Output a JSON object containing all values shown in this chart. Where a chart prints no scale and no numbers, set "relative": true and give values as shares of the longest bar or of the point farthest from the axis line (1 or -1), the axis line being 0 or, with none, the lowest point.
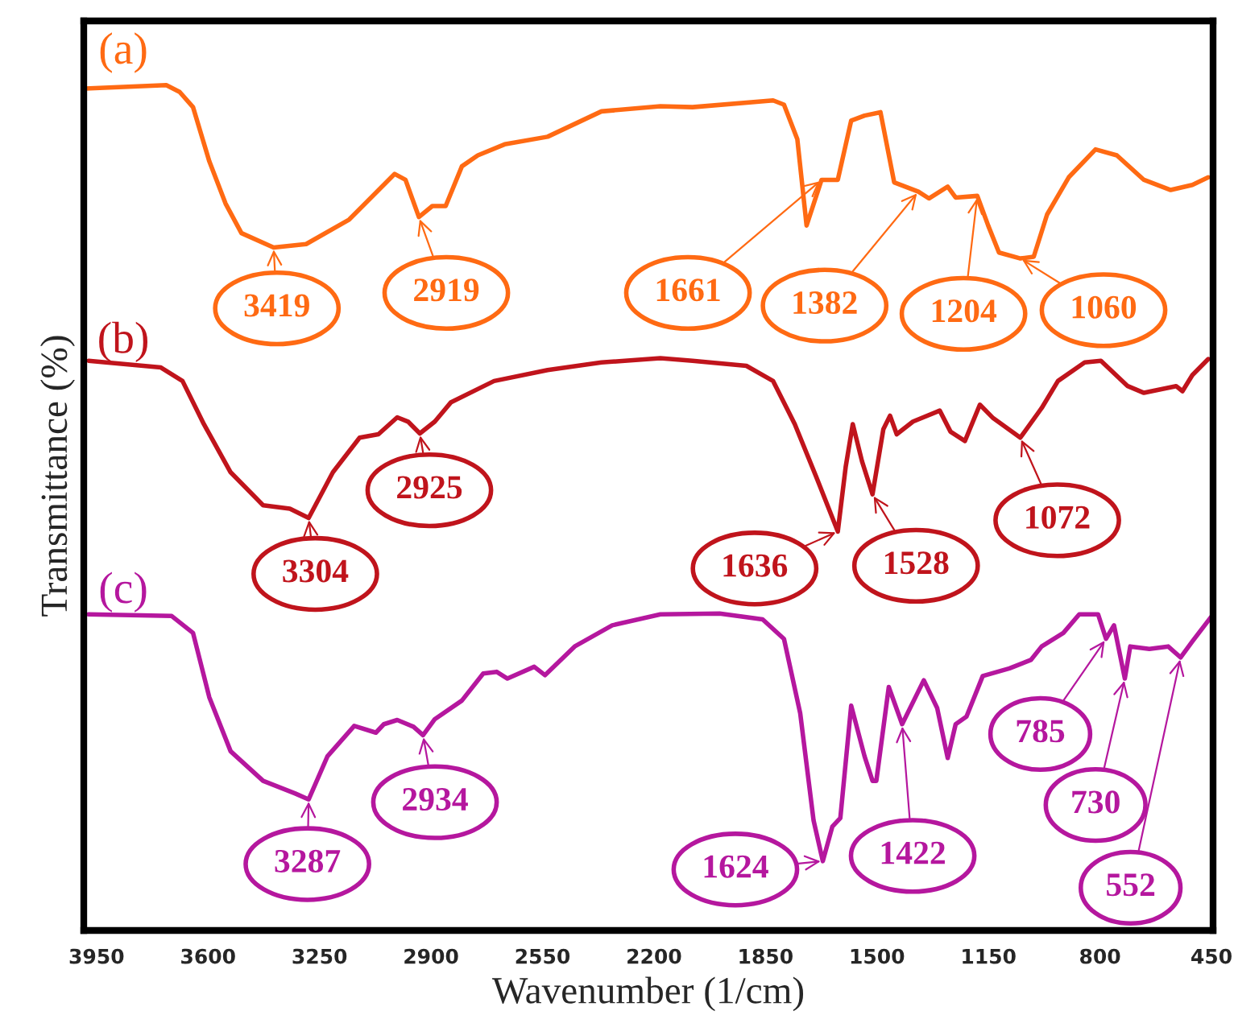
{
  "chart_data": {
    "type": "line",
    "xlabel": "Wavenumber (1/cm)",
    "ylabel": "Transmittance (%)",
    "relative": true,
    "xlim": [
      3990,
      445
    ],
    "xticks": [
      3950,
      3600,
      3250,
      2900,
      2550,
      2200,
      1850,
      1500,
      1150,
      800,
      450
    ],
    "grid": false,
    "legend": false,
    "marker": "none",
    "line_style": "solid",
    "series": [
      {
        "name": "(a)",
        "color": "#ff6a13",
        "x": [
          3985,
          3731,
          3689,
          3647,
          3596,
          3545,
          3495,
          3394,
          3292,
          3157,
          3014,
          2980,
          2938,
          2896,
          2854,
          2803,
          2753,
          2669,
          2534,
          2365,
          2180,
          2079,
          1826,
          1792,
          1750,
          1721,
          1674,
          1623,
          1581,
          1539,
          1489,
          1446,
          1370,
          1337,
          1278,
          1253,
          1185,
          1151,
          1117,
          1050,
          1008,
          966,
          898,
          814,
          747,
          662,
          578,
          510,
          460
        ],
        "values": [
          0.996,
          1.0,
          0.992,
          0.974,
          0.91,
          0.86,
          0.825,
          0.808,
          0.812,
          0.841,
          0.895,
          0.888,
          0.844,
          0.857,
          0.857,
          0.904,
          0.917,
          0.93,
          0.939,
          0.969,
          0.975,
          0.974,
          0.982,
          0.977,
          0.936,
          0.834,
          0.888,
          0.888,
          0.958,
          0.964,
          0.968,
          0.885,
          0.874,
          0.866,
          0.88,
          0.867,
          0.869,
          0.834,
          0.802,
          0.795,
          0.797,
          0.847,
          0.891,
          0.924,
          0.917,
          0.888,
          0.876,
          0.882,
          0.891
        ]
      },
      {
        "name": "(b)",
        "color": "#c0141c",
        "x": [
          3975,
          3748,
          3680,
          3613,
          3529,
          3427,
          3343,
          3284,
          3208,
          3124,
          3065,
          3006,
          2972,
          2935,
          2888,
          2837,
          2702,
          2534,
          2365,
          2180,
          2079,
          1910,
          1826,
          1758,
          1690,
          1623,
          1598,
          1576,
          1547,
          1514,
          1480,
          1459,
          1438,
          1387,
          1303,
          1269,
          1224,
          1177,
          1135,
          1050,
          983,
          932,
          848,
          797,
          713,
          662,
          561,
          541,
          510,
          460
        ],
        "values": [
          0.674,
          0.666,
          0.65,
          0.599,
          0.542,
          0.503,
          0.499,
          0.488,
          0.542,
          0.583,
          0.587,
          0.607,
          0.602,
          0.588,
          0.602,
          0.625,
          0.65,
          0.663,
          0.672,
          0.677,
          0.674,
          0.668,
          0.65,
          0.599,
          0.536,
          0.472,
          0.549,
          0.599,
          0.555,
          0.516,
          0.593,
          0.609,
          0.587,
          0.602,
          0.615,
          0.59,
          0.579,
          0.622,
          0.606,
          0.583,
          0.618,
          0.65,
          0.672,
          0.674,
          0.644,
          0.636,
          0.644,
          0.638,
          0.657,
          0.676
        ]
      },
      {
        "name": "(c)",
        "color": "#b5179e",
        "x": [
          3975,
          3714,
          3647,
          3596,
          3529,
          3427,
          3326,
          3284,
          3225,
          3141,
          3073,
          3048,
          3006,
          2955,
          2925,
          2888,
          2803,
          2736,
          2694,
          2660,
          2576,
          2542,
          2449,
          2331,
          2180,
          1994,
          1859,
          1792,
          1741,
          1699,
          1670,
          1640,
          1615,
          1581,
          1539,
          1514,
          1502,
          1463,
          1421,
          1353,
          1311,
          1278,
          1253,
          1219,
          1168,
          1084,
          1017,
          983,
          915,
          865,
          806,
          781,
          756,
          722,
          705,
          645,
          586,
          547,
          510,
          451
        ],
        "values": [
          0.374,
          0.372,
          0.352,
          0.276,
          0.212,
          0.177,
          0.162,
          0.155,
          0.206,
          0.242,
          0.234,
          0.244,
          0.249,
          0.241,
          0.231,
          0.25,
          0.272,
          0.304,
          0.306,
          0.298,
          0.312,
          0.302,
          0.336,
          0.361,
          0.374,
          0.375,
          0.368,
          0.345,
          0.257,
          0.13,
          0.082,
          0.123,
          0.133,
          0.266,
          0.206,
          0.177,
          0.177,
          0.288,
          0.244,
          0.296,
          0.263,
          0.204,
          0.244,
          0.253,
          0.301,
          0.31,
          0.32,
          0.336,
          0.352,
          0.374,
          0.374,
          0.345,
          0.361,
          0.298,
          0.336,
          0.333,
          0.336,
          0.323,
          0.342,
          0.371
        ]
      }
    ],
    "annotations": [
      {
        "text": "3419",
        "x": 3394,
        "y": 0.808
      },
      {
        "text": "2919",
        "x": 2938,
        "y": 0.844
      },
      {
        "text": "1661",
        "x": 1674,
        "y": 0.888
      },
      {
        "text": "1382",
        "x": 1370,
        "y": 0.874
      },
      {
        "text": "1204",
        "x": 1185,
        "y": 0.869
      },
      {
        "text": "1060",
        "x": 1050,
        "y": 0.795
      },
      {
        "text": "3304",
        "x": 3284,
        "y": 0.488
      },
      {
        "text": "2925",
        "x": 2935,
        "y": 0.588
      },
      {
        "text": "1636",
        "x": 1623,
        "y": 0.472
      },
      {
        "text": "1528",
        "x": 1514,
        "y": 0.516
      },
      {
        "text": "1072",
        "x": 1050,
        "y": 0.583
      },
      {
        "text": "3287",
        "x": 3284,
        "y": 0.155
      },
      {
        "text": "2934",
        "x": 2925,
        "y": 0.231
      },
      {
        "text": "1624",
        "x": 1670,
        "y": 0.082
      },
      {
        "text": "1422",
        "x": 1421,
        "y": 0.244
      },
      {
        "text": "785",
        "x": 781,
        "y": 0.345
      },
      {
        "text": "730",
        "x": 722,
        "y": 0.298
      },
      {
        "text": "552",
        "x": 547,
        "y": 0.323
      }
    ]
  }
}
